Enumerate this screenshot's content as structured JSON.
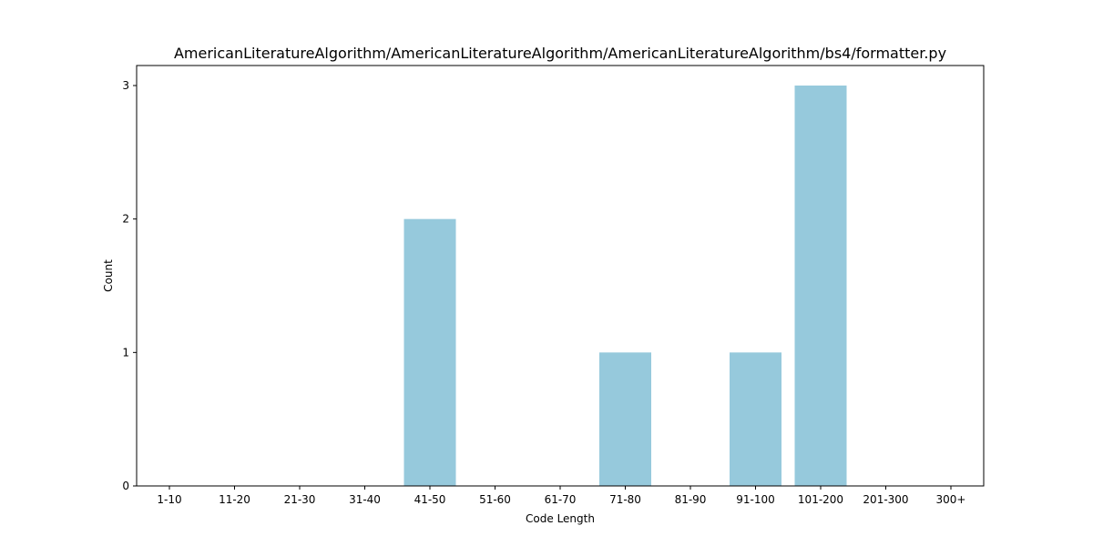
{
  "chart_data": {
    "type": "bar",
    "title": "AmericanLiteratureAlgorithm/AmericanLiteratureAlgorithm/AmericanLiteratureAlgorithm/bs4/formatter.py",
    "xlabel": "Code Length",
    "ylabel": "Count",
    "categories": [
      "1-10",
      "11-20",
      "21-30",
      "31-40",
      "41-50",
      "51-60",
      "61-70",
      "71-80",
      "81-90",
      "91-100",
      "101-200",
      "201-300",
      "300+"
    ],
    "values": [
      0,
      0,
      0,
      0,
      2,
      0,
      0,
      1,
      0,
      1,
      3,
      0,
      0
    ],
    "ylim": [
      0,
      3.15
    ],
    "yticks": [
      0,
      1,
      2,
      3
    ],
    "bar_color": "#96c9dc",
    "grid": false,
    "legend": "none"
  }
}
